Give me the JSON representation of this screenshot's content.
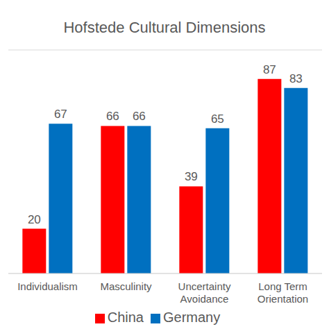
{
  "chart_data": {
    "type": "bar",
    "title": "Hofstede Cultural Dimensions",
    "categories": [
      "Individualism",
      "Masculinity",
      "Uncertainty Avoidance",
      "Long Term Orientation"
    ],
    "series": [
      {
        "name": "China",
        "color": "#ff0000",
        "values": [
          20,
          66,
          39,
          87
        ]
      },
      {
        "name": "Germany",
        "color": "#0070c0",
        "values": [
          67,
          66,
          65,
          83
        ]
      }
    ],
    "ylim": [
      0,
      100
    ],
    "yticks": [
      0,
      20,
      40,
      60,
      80,
      100
    ],
    "grid": true,
    "legend": "bottom",
    "data_labels": true,
    "tick_labels": "x"
  }
}
